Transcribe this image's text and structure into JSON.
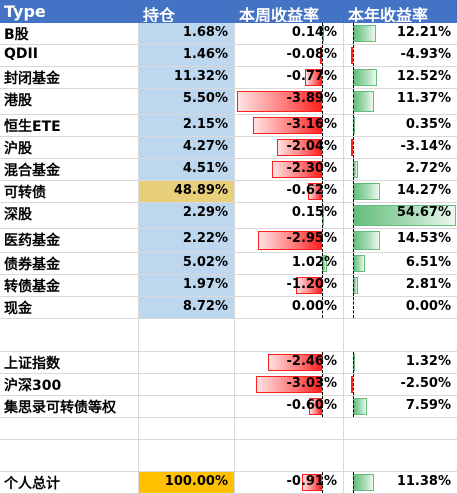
{
  "sheet": {
    "headers": [
      "Type",
      "持仓",
      "本周收益率",
      "本年收益率"
    ],
    "rows": [
      {
        "name": "B股",
        "holding": "1.68%",
        "week": "0.14%",
        "year": "12.21%"
      },
      {
        "name": "QDII",
        "holding": "1.46%",
        "week": "-0.08%",
        "year": "-4.93%"
      },
      {
        "name": "封闭基金",
        "holding": "11.32%",
        "week": "-0.77%",
        "year": "12.52%"
      },
      {
        "name": "港股",
        "holding": "5.50%",
        "week": "-3.89%",
        "year": "11.37%"
      },
      {
        "name": "恒生ETE",
        "holding": "2.15%",
        "week": "-3.16%",
        "year": "0.35%"
      },
      {
        "name": "沪股",
        "holding": "4.27%",
        "week": "-2.04%",
        "year": "-3.14%"
      },
      {
        "name": "混合基金",
        "holding": "4.51%",
        "week": "-2.30%",
        "year": "2.72%"
      },
      {
        "name": "可转债",
        "holding": "48.89%",
        "week": "-0.62%",
        "year": "14.27%"
      },
      {
        "name": "深股",
        "holding": "2.29%",
        "week": "0.15%",
        "year": "54.67%"
      },
      {
        "name": "医药基金",
        "holding": "2.22%",
        "week": "-2.95%",
        "year": "14.53%"
      },
      {
        "name": "债券基金",
        "holding": "5.02%",
        "week": "1.02%",
        "year": "6.51%"
      },
      {
        "name": "转债基金",
        "holding": "1.97%",
        "week": "-1.20%",
        "year": "2.81%"
      },
      {
        "name": "现金",
        "holding": "8.72%",
        "week": "0.00%",
        "year": "0.00%"
      },
      {
        "name": "",
        "holding": "",
        "week": "",
        "year": ""
      },
      {
        "name": "上证指数",
        "holding": "",
        "week": "-2.46%",
        "year": "1.32%"
      },
      {
        "name": "沪深300",
        "holding": "",
        "week": "-3.03%",
        "year": "-2.50%"
      },
      {
        "name": "集思录可转债等权",
        "holding": "",
        "week": "-0.60%",
        "year": "7.59%"
      },
      {
        "name": "",
        "holding": "",
        "week": "",
        "year": ""
      },
      {
        "name": "",
        "holding": "",
        "week": "",
        "year": ""
      },
      {
        "name": "个人总计",
        "holding": "100.00%",
        "week": "-0.91%",
        "year": "11.38%"
      }
    ]
  },
  "colors": {
    "header_bg": "#4472c4",
    "holding_bg": "#bdd7ee",
    "holding_highlight": "#e8cf7a",
    "total_bg": "#ffc000",
    "negative_bar": "#ff1f1f",
    "positive_bar": "#63be7b"
  }
}
